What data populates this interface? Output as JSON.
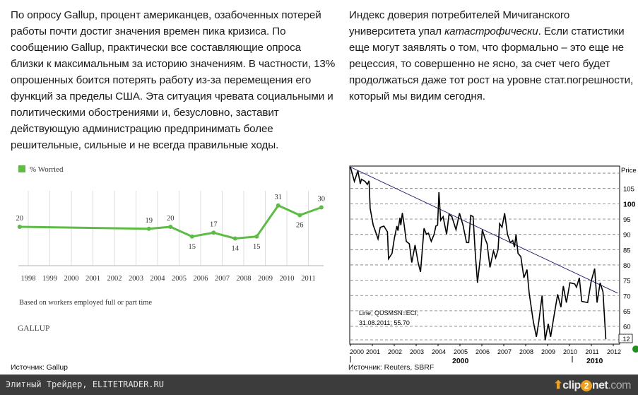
{
  "left_article": {
    "text": "По опросу Gallup, процент американцев, озабоченных потерей работы почти достиг значения времен пика кризиса. По сообщению Gallup, практически все составляющие опроса близки к максимальным за историю значениям. В частности, 13% опрошенных боится потерять работу из-за перемещения его функций за пределы США. Эта ситуация чревата социальными и политическими обострениями и, безусловно, заставит действующую администрацию предпринимать более решительные, сильные и не всегда правильные ходы.",
    "source": "Источник: Gallup"
  },
  "right_article": {
    "text_before": "Индекс доверия потребителей Мичиганского университета упал ",
    "text_italic": "катастрофически",
    "text_after": ". Если статистики еще могут заявлять о том, что формально – это еще не рецессия, то совершенно не ясно, за счет чего будет продолжаться даже тот рост на уровне стат.погрешности, который мы видим сегодня.",
    "source": "Источник: Reuters, SBRF"
  },
  "chart_data": [
    {
      "type": "line",
      "legend": "% Worried",
      "legend_color": "#5dbb46",
      "categories": [
        "1998",
        "1999",
        "2000",
        "2001",
        "2002",
        "2003",
        "2004",
        "2005",
        "2006",
        "2007",
        "2008",
        "2009",
        "2010",
        "2011"
      ],
      "series": [
        {
          "name": "% Worried",
          "x": [
            1997.6,
            2003.6,
            2004.6,
            2005.6,
            2006.6,
            2007.6,
            2008.6,
            2009.6,
            2010.6,
            2011.6
          ],
          "values": [
            20,
            19,
            20,
            15,
            17,
            14,
            15,
            31,
            26,
            30
          ],
          "labels": [
            "20",
            "19",
            "20",
            "15",
            "17",
            "14",
            "15",
            "31",
            "26",
            "30"
          ]
        }
      ],
      "note": "Based on workers employed full or part time",
      "brand": "GALLUP",
      "grid": "vertical"
    },
    {
      "type": "line",
      "ylabel": "Price",
      "yticks": [
        "105",
        "100",
        "95",
        "90",
        "85",
        "80",
        "75",
        "70",
        "65",
        "60"
      ],
      "xticks": [
        "2000",
        "2001",
        "2002",
        "2003",
        "2004",
        "2005",
        "2006",
        "2007",
        "2008",
        "2009",
        "2010",
        "2011",
        "2012"
      ],
      "decade_labels": [
        "2000",
        "2010"
      ],
      "ylim": [
        55,
        113
      ],
      "xlim": [
        2000,
        2012.3
      ],
      "grid": "horizontal-dashed",
      "annotation_line1": "Line; QUSMSN=ECI;",
      "annotation_line2": "31.08.2011; 55.70",
      "last_value_box": ".12",
      "series": [
        {
          "x": [
            2000.0,
            2000.18,
            2000.34,
            2000.45,
            2000.5,
            2000.67,
            2000.77,
            2000.85,
            2000.9,
            2001.04,
            2001.15,
            2001.26,
            2001.36,
            2001.53,
            2001.69,
            2001.74,
            2001.9,
            2002.0,
            2002.12,
            2002.17,
            2002.26,
            2002.3,
            2002.37,
            2002.44,
            2002.55,
            2002.69,
            2002.8,
            2002.95,
            2003.09,
            2003.2,
            2003.36,
            2003.47,
            2003.56,
            2003.69,
            2003.82,
            2003.9,
            2003.98,
            2004.04,
            2004.12,
            2004.23,
            2004.39,
            2004.5,
            2004.63,
            2004.82,
            2004.98,
            2005.14,
            2005.3,
            2005.4,
            2005.49,
            2005.6,
            2005.7,
            2005.8,
            2005.94,
            2006.02,
            2006.15,
            2006.24,
            2006.37,
            2006.53,
            2006.63,
            2006.74,
            2006.81,
            2006.92,
            2007.04,
            2007.17,
            2007.3,
            2007.41,
            2007.49,
            2007.56,
            2007.65,
            2007.78,
            2007.92,
            2008.06,
            2008.16,
            2008.35,
            2008.49,
            2008.6,
            2008.75,
            2008.89,
            2009.03,
            2009.14,
            2009.27,
            2009.46,
            2009.61,
            2009.72,
            2009.86,
            2010.02,
            2010.24,
            2010.32,
            2010.45,
            2010.56,
            2010.83,
            2010.99,
            2011.15,
            2011.26,
            2011.4,
            2011.53,
            2011.66
          ],
          "values": [
            112,
            107.3,
            110.8,
            106.5,
            108,
            107.3,
            106.3,
            107.5,
            98.5,
            93,
            90.8,
            88.5,
            92.3,
            92.7,
            90.8,
            82,
            83.8,
            88.5,
            92.7,
            91.2,
            95.4,
            93,
            97,
            93.8,
            87.7,
            86.9,
            80.8,
            86.5,
            80.8,
            77.7,
            92,
            90,
            90.4,
            87.7,
            90,
            92.7,
            93,
            103.8,
            94.6,
            95.8,
            90,
            96.5,
            95.8,
            91.5,
            96.9,
            93,
            87.3,
            87.3,
            96.2,
            95.8,
            83.8,
            74.2,
            83,
            91.5,
            88.5,
            86.9,
            79.2,
            84.6,
            82.3,
            85,
            93.5,
            92.3,
            96.9,
            90,
            87.3,
            88,
            85.8,
            90,
            83.8,
            82.7,
            75.8,
            78.5,
            70.8,
            61.5,
            56.5,
            61.5,
            70,
            55.4,
            60.8,
            56.5,
            62.3,
            70.4,
            66.2,
            73.1,
            67.7,
            74.2,
            73.8,
            72.7,
            75.8,
            68.1,
            67.7,
            74.6,
            78.8,
            67.7,
            74.2,
            71.2,
            55.7
          ],
          "color": "#000000"
        }
      ],
      "trendline": {
        "x": [
          2000.0,
          2012.2
        ],
        "values": [
          112,
          70.8
        ],
        "color": "#1a1a6e"
      }
    }
  ],
  "footer": {
    "site": "Элитный Трейдер, ELITETRADER.RU",
    "logo_a": "clip",
    "logo_2": "2",
    "logo_b": "net",
    "logo_c": ".com"
  }
}
